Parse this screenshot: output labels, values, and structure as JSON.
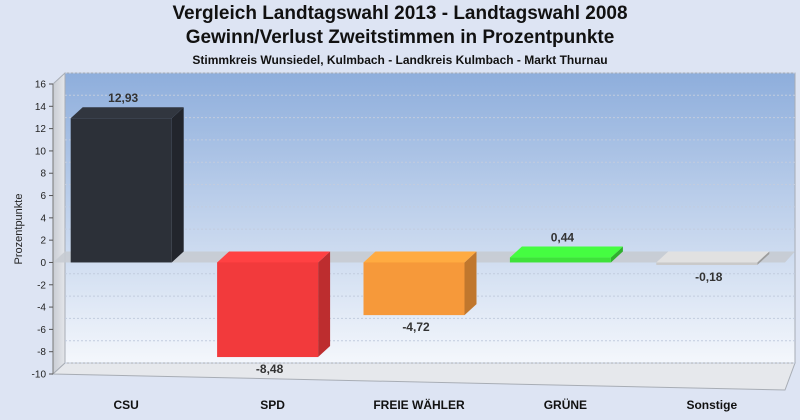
{
  "chart_data": {
    "type": "bar",
    "title": "Vergleich Landtagswahl 2013 - Landtagswahl 2008",
    "subtitle": "Gewinn/Verlust Zweitstimmen in Prozentpunkte",
    "subsubtitle": "Stimmkreis Wunsiedel, Kulmbach - Landkreis Kulmbach - Markt Thurnau",
    "ylabel": "Prozentpunkte",
    "ylim": [
      -10,
      16
    ],
    "yticks": [
      -10,
      -8,
      -6,
      -4,
      -2,
      0,
      2,
      4,
      6,
      8,
      10,
      12,
      14,
      16
    ],
    "categories": [
      "CSU",
      "SPD",
      "FREIE WÄHLER",
      "GRÜNE",
      "Sonstige"
    ],
    "values": [
      12.93,
      -8.48,
      -4.72,
      0.44,
      -0.18
    ],
    "value_labels": [
      "12,93",
      "-8,48",
      "-4,72",
      "0,44",
      "-0,18"
    ],
    "colors": [
      "#2c3038",
      "#f23a3c",
      "#f6993a",
      "#3ee23a",
      "#c9c9c9"
    ],
    "grid": true,
    "legend": "none"
  }
}
